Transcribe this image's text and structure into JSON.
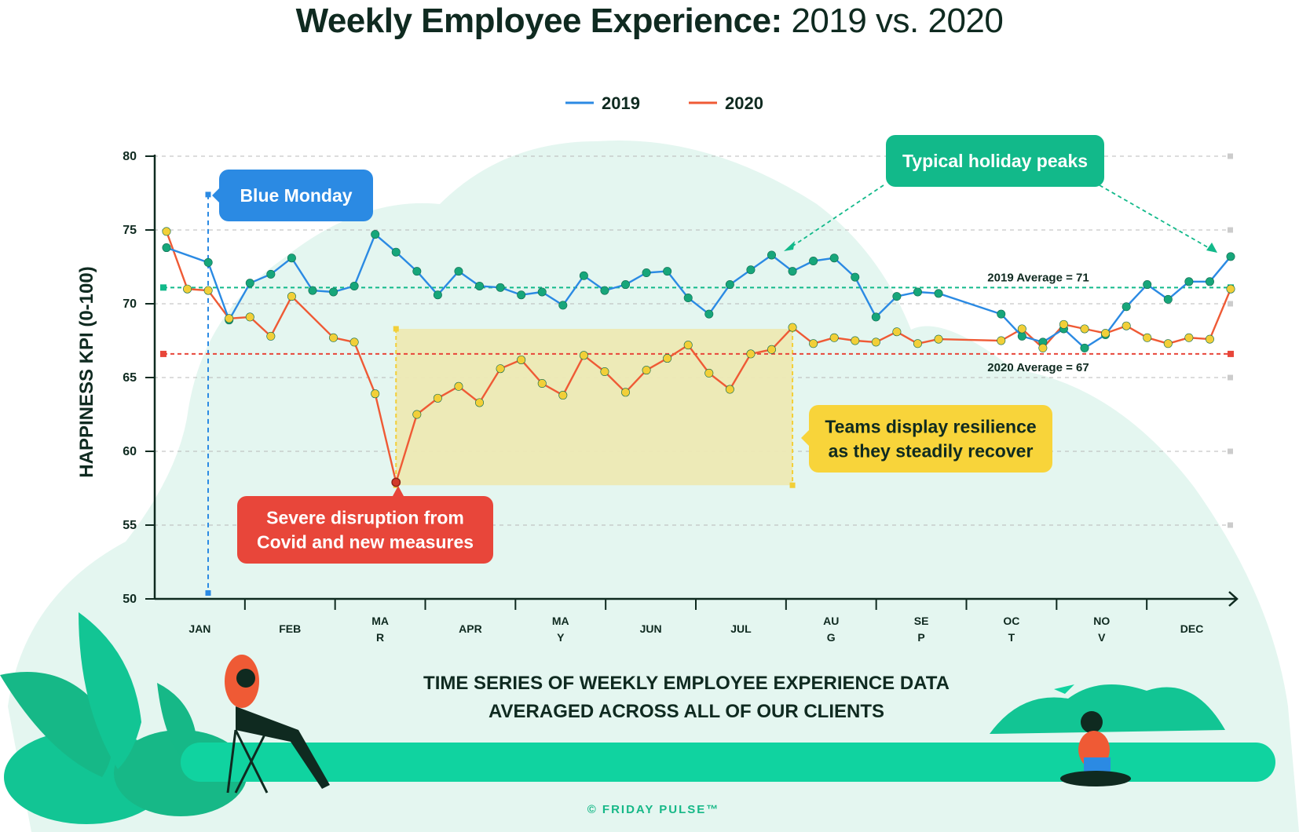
{
  "title": {
    "bold": "Weekly Employee Experience:",
    "light": "2019 vs. 2020"
  },
  "colors": {
    "s2019": "#2b8ae3",
    "s2020": "#ef5a35",
    "avg2019": "#12b98a",
    "avg2020": "#e8463a",
    "dot2019": "#17a67a",
    "dot2020": "#f2cf38",
    "grid": "#b8b8b8",
    "cloud": "#e4f6f0",
    "band": "#10d3a0",
    "box": "#ede9b3"
  },
  "chart_data": {
    "type": "line",
    "title": "Weekly Employee Experience: 2019 vs. 2020",
    "ylabel": "HAPPINESS KPI (0-100)",
    "xlabel": "",
    "ylim": [
      50,
      80
    ],
    "yticks": [
      "50",
      "55",
      "60",
      "65",
      "70",
      "75",
      "80"
    ],
    "grid": true,
    "legend_position": "top-center",
    "months": [
      "JAN",
      "FEB",
      "MAR",
      "APR",
      "MAY",
      "JUN",
      "JUL",
      "AUG",
      "SEP",
      "OCT",
      "NOV",
      "DEC"
    ],
    "month_labels": [
      [
        "JAN"
      ],
      [
        "FEB"
      ],
      [
        "MA",
        "R"
      ],
      [
        "APR"
      ],
      [
        "MA",
        "Y"
      ],
      [
        "JUN"
      ],
      [
        "JUL"
      ],
      [
        "AU",
        "G"
      ],
      [
        "SE",
        "P"
      ],
      [
        "OC",
        "T"
      ],
      [
        "NO",
        "V"
      ],
      [
        "DEC"
      ]
    ],
    "series": [
      {
        "name": "2019",
        "values": [
          73.8,
          null,
          72.8,
          68.9,
          71.4,
          72.0,
          73.1,
          70.9,
          70.8,
          71.2,
          74.7,
          73.5,
          72.2,
          70.6,
          72.2,
          71.2,
          71.1,
          70.6,
          70.8,
          69.9,
          71.9,
          70.9,
          71.3,
          72.1,
          72.2,
          70.4,
          69.3,
          71.3,
          72.3,
          73.3,
          72.2,
          72.9,
          73.1,
          71.8,
          69.1,
          70.5,
          70.8,
          70.7,
          null,
          null,
          69.3,
          67.8,
          67.4,
          68.3,
          67.0,
          67.9,
          69.8,
          71.3,
          70.3,
          71.5,
          71.5,
          73.2
        ]
      },
      {
        "name": "2020",
        "values": [
          74.9,
          71.0,
          70.9,
          69.0,
          69.1,
          67.8,
          70.5,
          null,
          67.7,
          67.4,
          63.9,
          57.9,
          62.5,
          63.6,
          64.4,
          63.3,
          65.6,
          66.2,
          64.6,
          63.8,
          66.5,
          65.4,
          64.0,
          65.5,
          66.3,
          67.2,
          65.3,
          64.2,
          66.6,
          66.9,
          68.4,
          67.3,
          67.7,
          67.5,
          67.4,
          68.1,
          67.3,
          67.6,
          null,
          null,
          67.5,
          68.3,
          67.0,
          68.6,
          68.3,
          68.0,
          68.5,
          67.7,
          67.3,
          67.7,
          67.6,
          71.0
        ]
      }
    ],
    "averages": [
      {
        "name": "2019",
        "value": 71.1,
        "label": "2019 Average = 71"
      },
      {
        "name": "2020",
        "value": 66.6,
        "label": "2020 Average = 67"
      }
    ],
    "annotations": {
      "blue_monday": "Blue Monday",
      "holiday": "Typical holiday peaks",
      "covid": [
        "Severe disruption from",
        "Covid and new measures"
      ],
      "resilience": [
        "Teams display resilience",
        "as they steadily recover"
      ]
    }
  },
  "subtitle": [
    "TIME SERIES OF WEEKLY EMPLOYEE EXPERIENCE DATA",
    "AVERAGED ACROSS ALL OF OUR CLIENTS"
  ],
  "copyright": "© FRIDAY PULSE™"
}
